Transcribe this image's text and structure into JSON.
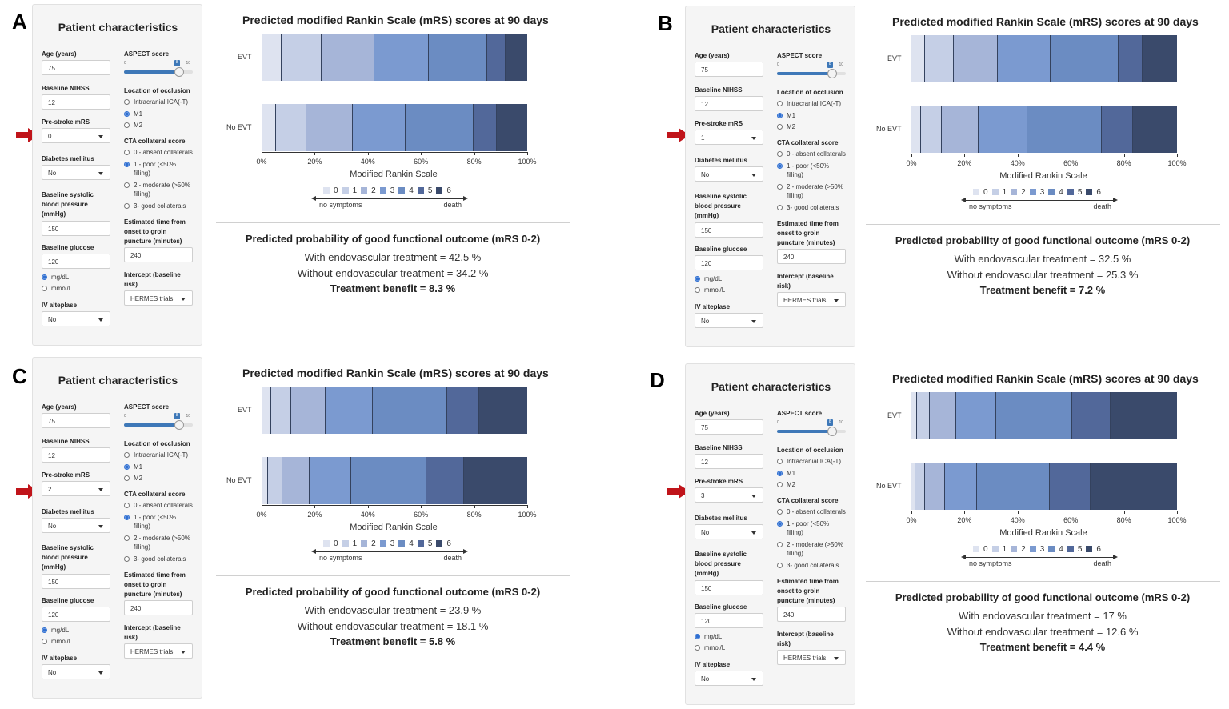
{
  "form_labels": {
    "title": "Patient characteristics",
    "age": "Age (years)",
    "nihss": "Baseline NIHSS",
    "prestroke": "Pre-stroke mRS",
    "diabetes": "Diabetes mellitus",
    "sbp_1": "Baseline systolic",
    "sbp_2": "blood pressure",
    "sbp_3": "(mmHg)",
    "glucose": "Baseline glucose",
    "unit_mgdl": "mg/dL",
    "unit_mmol": "mmol/L",
    "alteplase": "IV alteplase",
    "aspect": "ASPECT score",
    "slider_min": "0",
    "slider_max": "10",
    "occlusion": "Location of occlusion",
    "occ_ica": "Intracranial ICA(-T)",
    "occ_m1": "M1",
    "occ_m2": "M2",
    "cta": "CTA collateral score",
    "cta_0": "0 - absent collaterals",
    "cta_1a": "1 - poor (<50%",
    "cta_1b": "filling)",
    "cta_2a": "2 - moderate (>50%",
    "cta_2b": "filling)",
    "cta_3": "3- good collaterals",
    "time_1": "Estimated time from",
    "time_2": "onset to groin",
    "time_3": "puncture (minutes)",
    "intercept_1": "Intercept (baseline",
    "intercept_2": "risk)"
  },
  "chart_labels": {
    "title": "Predicted modified Rankin Scale (mRS) scores at 90 days",
    "row_evt": "EVT",
    "row_noevt": "No EVT",
    "xlabel": "Modified Rankin Scale",
    "ticks": [
      "0%",
      "20%",
      "40%",
      "60%",
      "80%",
      "100%"
    ],
    "legend": [
      "0",
      "1",
      "2",
      "3",
      "4",
      "5",
      "6"
    ],
    "scale_left": "no symptoms",
    "scale_right": "death",
    "result_title": "Predicted probability of good functional outcome (mRS 0-2)"
  },
  "colors": {
    "mrs": [
      "#dee3f0",
      "#c5cfe6",
      "#a6b5d8",
      "#7b9ad0",
      "#6b8cc2",
      "#52689a",
      "#3a4a6b"
    ],
    "arrow": "#c0141a",
    "slider": "#3e78b8"
  },
  "panels": [
    {
      "letter": "A",
      "age": "75",
      "nihss": "12",
      "prestroke": "0",
      "diabetes": "No",
      "sbp": "150",
      "glucose": "120",
      "alteplase": "No",
      "aspect_value": "8",
      "aspect_fraction": 0.8,
      "time": "240",
      "intercept": "HERMES trials",
      "with_text": "With endovascular treatment = 42.5 %",
      "without_text": "Without endovascular treatment = 34.2 %",
      "benefit_text": "Treatment benefit = 8.3 %"
    },
    {
      "letter": "B",
      "age": "75",
      "nihss": "12",
      "prestroke": "1",
      "diabetes": "No",
      "sbp": "150",
      "glucose": "120",
      "alteplase": "No",
      "aspect_value": "8",
      "aspect_fraction": 0.8,
      "time": "240",
      "intercept": "HERMES trials",
      "with_text": "With endovascular treatment = 32.5 %",
      "without_text": "Without endovascular treatment = 25.3 %",
      "benefit_text": "Treatment benefit = 7.2 %"
    },
    {
      "letter": "C",
      "age": "75",
      "nihss": "12",
      "prestroke": "2",
      "diabetes": "No",
      "sbp": "150",
      "glucose": "120",
      "alteplase": "No",
      "aspect_value": "8",
      "aspect_fraction": 0.8,
      "time": "240",
      "intercept": "HERMES trials",
      "with_text": "With endovascular treatment = 23.9 %",
      "without_text": "Without endovascular treatment = 18.1 %",
      "benefit_text": "Treatment benefit = 5.8 %"
    },
    {
      "letter": "D",
      "age": "75",
      "nihss": "12",
      "prestroke": "3",
      "diabetes": "No",
      "sbp": "150",
      "glucose": "120",
      "alteplase": "No",
      "aspect_value": "8",
      "aspect_fraction": 0.8,
      "time": "240",
      "intercept": "HERMES trials",
      "with_text": "With endovascular treatment = 17 %",
      "without_text": "Without endovascular treatment = 12.6 %",
      "benefit_text": "Treatment benefit = 4.4 %"
    }
  ],
  "chart_data": [
    {
      "type": "bar",
      "stacked": true,
      "orientation": "horizontal",
      "title": "Predicted modified Rankin Scale (mRS) scores at 90 days",
      "xlabel": "Modified Rankin Scale",
      "categories": [
        "EVT",
        "No EVT"
      ],
      "xlim": [
        0,
        100
      ],
      "legend": [
        "0",
        "1",
        "2",
        "3",
        "4",
        "5",
        "6"
      ],
      "series": [
        {
          "name": "0",
          "values": [
            7.5,
            5.5
          ]
        },
        {
          "name": "1",
          "values": [
            15,
            11.5
          ]
        },
        {
          "name": "2",
          "values": [
            20,
            17.2
          ]
        },
        {
          "name": "3",
          "values": [
            20.5,
            20
          ]
        },
        {
          "name": "4",
          "values": [
            22,
            25.5
          ]
        },
        {
          "name": "5",
          "values": [
            7,
            8.8
          ]
        },
        {
          "name": "6",
          "values": [
            8,
            11.5
          ]
        }
      ]
    },
    {
      "type": "bar",
      "stacked": true,
      "orientation": "horizontal",
      "title": "Predicted modified Rankin Scale (mRS) scores at 90 days",
      "xlabel": "Modified Rankin Scale",
      "categories": [
        "EVT",
        "No EVT"
      ],
      "xlim": [
        0,
        100
      ],
      "legend": [
        "0",
        "1",
        "2",
        "3",
        "4",
        "5",
        "6"
      ],
      "series": [
        {
          "name": "0",
          "values": [
            5,
            3.5
          ]
        },
        {
          "name": "1",
          "values": [
            11,
            8
          ]
        },
        {
          "name": "2",
          "values": [
            16.5,
            13.8
          ]
        },
        {
          "name": "3",
          "values": [
            20,
            18.5
          ]
        },
        {
          "name": "4",
          "values": [
            25.5,
            28
          ]
        },
        {
          "name": "5",
          "values": [
            9,
            11.5
          ]
        },
        {
          "name": "6",
          "values": [
            13,
            16.7
          ]
        }
      ]
    },
    {
      "type": "bar",
      "stacked": true,
      "orientation": "horizontal",
      "title": "Predicted modified Rankin Scale (mRS) scores at 90 days",
      "xlabel": "Modified Rankin Scale",
      "categories": [
        "EVT",
        "No EVT"
      ],
      "xlim": [
        0,
        100
      ],
      "legend": [
        "0",
        "1",
        "2",
        "3",
        "4",
        "5",
        "6"
      ],
      "series": [
        {
          "name": "0",
          "values": [
            3.5,
            2.3
          ]
        },
        {
          "name": "1",
          "values": [
            7.5,
            5.5
          ]
        },
        {
          "name": "2",
          "values": [
            13,
            10.3
          ]
        },
        {
          "name": "3",
          "values": [
            18,
            15.5
          ]
        },
        {
          "name": "4",
          "values": [
            28,
            28.5
          ]
        },
        {
          "name": "5",
          "values": [
            12,
            14
          ]
        },
        {
          "name": "6",
          "values": [
            18,
            23.9
          ]
        }
      ]
    },
    {
      "type": "bar",
      "stacked": true,
      "orientation": "horizontal",
      "title": "Predicted modified Rankin Scale (mRS) scores at 90 days",
      "xlabel": "Modified Rankin Scale",
      "categories": [
        "EVT",
        "No EVT"
      ],
      "xlim": [
        0,
        100
      ],
      "legend": [
        "0",
        "1",
        "2",
        "3",
        "4",
        "5",
        "6"
      ],
      "series": [
        {
          "name": "0",
          "values": [
            2,
            1.5
          ]
        },
        {
          "name": "1",
          "values": [
            5,
            3.5
          ]
        },
        {
          "name": "2",
          "values": [
            10,
            7.6
          ]
        },
        {
          "name": "3",
          "values": [
            15,
            12
          ]
        },
        {
          "name": "4",
          "values": [
            28.5,
            27.5
          ]
        },
        {
          "name": "5",
          "values": [
            14.5,
            15.5
          ]
        },
        {
          "name": "6",
          "values": [
            25,
            32.4
          ]
        }
      ]
    }
  ]
}
